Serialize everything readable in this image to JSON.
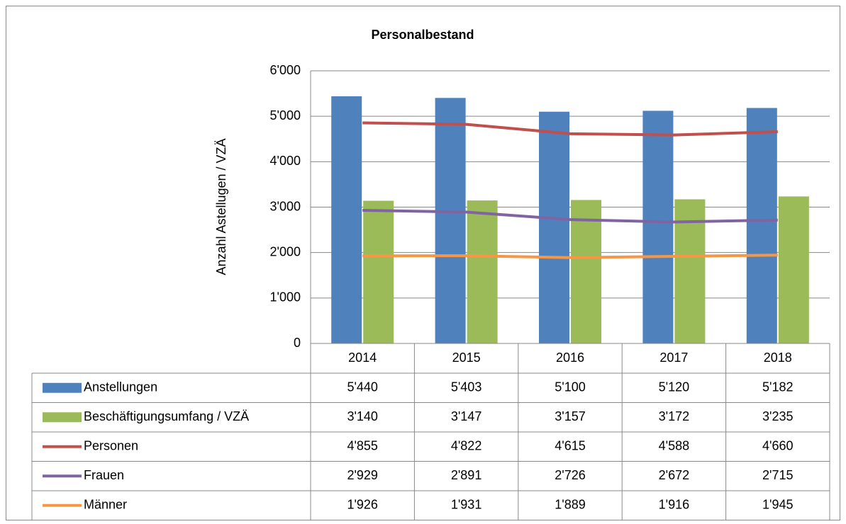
{
  "chart_data": {
    "type": "combo",
    "title": "Personalbestand",
    "y_label": "Anzahl Astellugen / VZÄ",
    "categories": [
      "2014",
      "2015",
      "2016",
      "2017",
      "2018"
    ],
    "ylim": [
      0,
      6000
    ],
    "yticks": [
      0,
      {
        "value": 1000,
        "label": "1'000"
      },
      {
        "value": 2000,
        "label": "2'000"
      },
      {
        "value": 3000,
        "label": "3'000"
      },
      {
        "value": 4000,
        "label": "4'000"
      },
      {
        "value": 5000,
        "label": "5'000"
      },
      {
        "value": 6000,
        "label": "6'000"
      }
    ],
    "grid": true,
    "series": [
      {
        "name": "Anstellungen",
        "type": "bar",
        "color": "#4f81bd",
        "values": [
          5440,
          5403,
          5100,
          5120,
          5182
        ],
        "value_labels": [
          "5'440",
          "5'403",
          "5'100",
          "5'120",
          "5'182"
        ]
      },
      {
        "name": "Beschäftigungsumfang / VZÄ",
        "type": "bar",
        "color": "#9bbb59",
        "values": [
          3140,
          3147,
          3157,
          3172,
          3235
        ],
        "value_labels": [
          "3'140",
          "3'147",
          "3'157",
          "3'172",
          "3'235"
        ]
      },
      {
        "name": "Personen",
        "type": "line",
        "color": "#c0504d",
        "values": [
          4855,
          4822,
          4615,
          4588,
          4660
        ],
        "value_labels": [
          "4'855",
          "4'822",
          "4'615",
          "4'588",
          "4'660"
        ]
      },
      {
        "name": "Frauen",
        "type": "line",
        "color": "#8064a2",
        "values": [
          2929,
          2891,
          2726,
          2672,
          2715
        ],
        "value_labels": [
          "2'929",
          "2'891",
          "2'726",
          "2'672",
          "2'715"
        ]
      },
      {
        "name": "Männer",
        "type": "line",
        "color": "#f79646",
        "values": [
          1926,
          1931,
          1889,
          1916,
          1945
        ],
        "value_labels": [
          "1'926",
          "1'931",
          "1'889",
          "1'916",
          "1'945"
        ]
      }
    ]
  }
}
